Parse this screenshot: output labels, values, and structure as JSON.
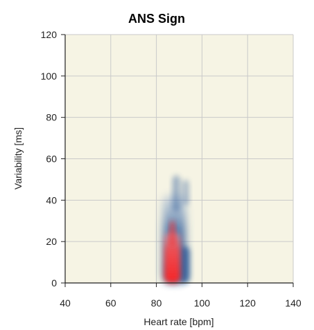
{
  "chart_data": {
    "type": "heatmap",
    "title": "ANS Sign",
    "xlabel": "Heart rate [bpm]",
    "ylabel": "Variability [ms]",
    "xlim": [
      40,
      140
    ],
    "ylim": [
      0,
      120
    ],
    "x_ticks": [
      "40",
      "60",
      "80",
      "100",
      "120",
      "140"
    ],
    "y_ticks": [
      "0",
      "20",
      "40",
      "60",
      "80",
      "100",
      "120"
    ],
    "grid": true,
    "colors": {
      "plot_background": "#f6f4e4",
      "grid": "#c9c9c9",
      "axis": "#1f1f1f",
      "low_density": "#2e5b9a",
      "high_density": "#ff2b2b"
    },
    "density_regions": [
      {
        "level": "low",
        "x_range": [
          82,
          96
        ],
        "y_range": [
          0,
          52
        ]
      },
      {
        "level": "high",
        "x_range": [
          84,
          90
        ],
        "y_range": [
          0,
          30
        ]
      }
    ]
  }
}
